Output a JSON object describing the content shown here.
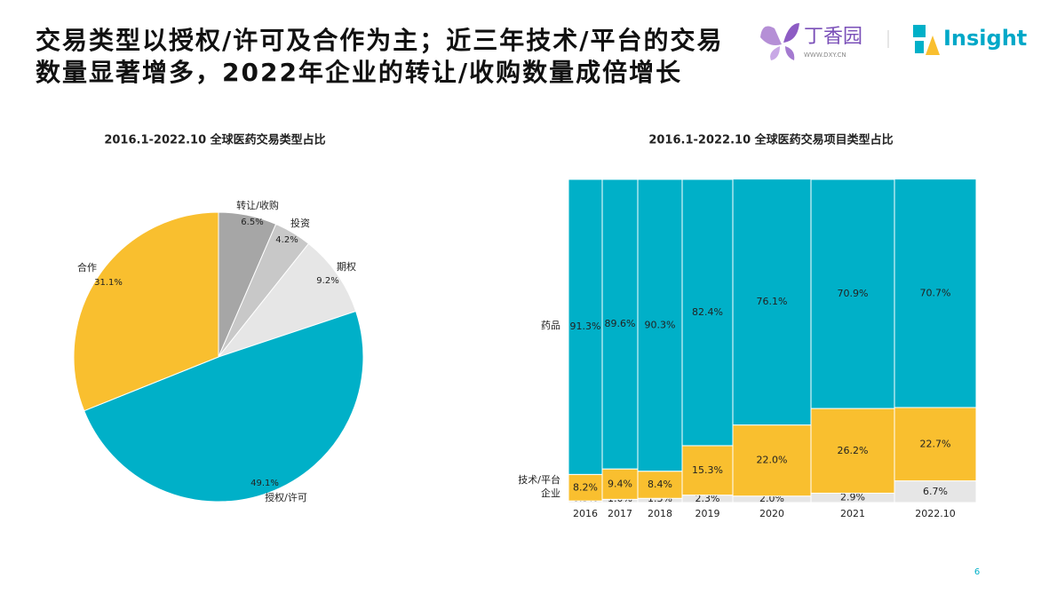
{
  "header": {
    "title_lines": [
      "交易类型以授权/许可及合作为主；近三年技术/平台的交易",
      "数量显著增多，2022年企业的转让/收购数量成倍增长"
    ],
    "logo_name": "丁香园",
    "logo_url": "WWW.DXY.CN",
    "brand": "Insight"
  },
  "page_number": "6",
  "chart_data": [
    {
      "type": "pie",
      "title": "2016.1-2022.10 全球医药交易类型占比",
      "categories": [
        "转让/收购",
        "投资",
        "期权",
        "授权/许可",
        "合作"
      ],
      "values": [
        6.5,
        4.2,
        9.2,
        49.1,
        31.1
      ],
      "value_labels": [
        "6.5%",
        "4.2%",
        "9.2%",
        "49.1%",
        "31.1%"
      ],
      "colors": [
        "#a6a6a6",
        "#c8c8c8",
        "#e6e6e6",
        "#00b0c8",
        "#f9bf2f"
      ]
    },
    {
      "type": "mekko",
      "title": "2016.1-2022.10 全球医药交易项目类型占比",
      "categories": [
        "2016",
        "2017",
        "2018",
        "2019",
        "2020",
        "2021",
        "2022.10"
      ],
      "widths": [
        38,
        40,
        50,
        57,
        88,
        94,
        92
      ],
      "ylim": [
        0,
        100
      ],
      "series": [
        {
          "name": "企业",
          "color": "#e6e6e6",
          "values": [
            0.5,
            1.0,
            1.3,
            2.3,
            2.0,
            2.9,
            6.7
          ],
          "value_labels": [
            "0.5%",
            "1.0%",
            "1.3%",
            "2.3%",
            "2.0%",
            "2.9%",
            "6.7%"
          ]
        },
        {
          "name": "技术/平台",
          "color": "#f9bf2f",
          "values": [
            8.2,
            9.4,
            8.4,
            15.3,
            22.0,
            26.2,
            22.7
          ],
          "value_labels": [
            "8.2%",
            "9.4%",
            "8.4%",
            "15.3%",
            "22.0%",
            "26.2%",
            "22.7%"
          ]
        },
        {
          "name": "药品",
          "color": "#00b0c8",
          "values": [
            91.3,
            89.6,
            90.3,
            82.4,
            76.1,
            70.9,
            70.7
          ],
          "value_labels": [
            "91.3%",
            "89.6%",
            "90.3%",
            "82.4%",
            "76.1%",
            "70.9%",
            "70.7%"
          ]
        }
      ]
    }
  ]
}
